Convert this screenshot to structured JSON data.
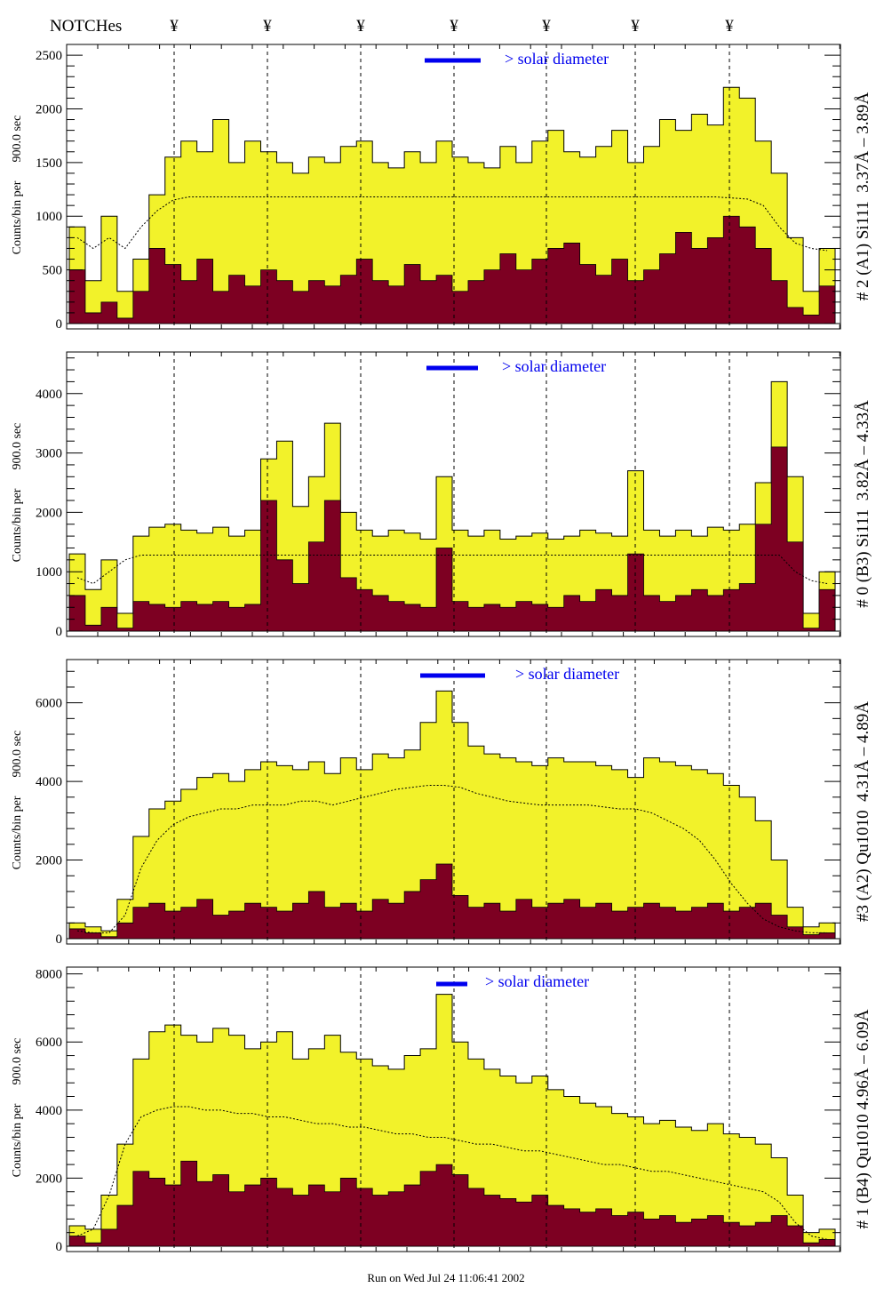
{
  "header": {
    "notches_label": "NOTCHes",
    "notch_symbol": "¥",
    "notch_count": 7
  },
  "footer": "Run on Wed Jul 24 11:06:41 2002",
  "colors": {
    "total": "#f2f22a",
    "filtered": "#7d0022",
    "legend": "#0000ee",
    "axis": "#000000"
  },
  "chart_data": [
    {
      "type": "bar",
      "title": "# 2 (A1) Si111  3.37Å – 3.89Å",
      "ylabel": "Counts/bin per      900.0 sec",
      "legend": "> solar diameter",
      "ylim": [
        0,
        2600
      ],
      "yticks": [
        0,
        500,
        1000,
        1500,
        2000,
        2500
      ],
      "series": [
        {
          "name": "total",
          "values": [
            900,
            400,
            1000,
            300,
            600,
            1200,
            1550,
            1700,
            1600,
            1900,
            1500,
            1700,
            1600,
            1500,
            1400,
            1550,
            1500,
            1650,
            1700,
            1500,
            1450,
            1600,
            1500,
            1700,
            1550,
            1500,
            1450,
            1650,
            1500,
            1700,
            1800,
            1600,
            1550,
            1650,
            1800,
            1500,
            1650,
            1900,
            1800,
            1950,
            1850,
            2200,
            2100,
            1700,
            1400,
            800,
            300,
            700
          ]
        },
        {
          "name": "filtered",
          "values": [
            500,
            100,
            200,
            50,
            300,
            700,
            550,
            400,
            600,
            300,
            450,
            350,
            500,
            400,
            300,
            400,
            350,
            450,
            600,
            400,
            350,
            550,
            400,
            450,
            300,
            400,
            500,
            650,
            500,
            600,
            700,
            750,
            550,
            450,
            600,
            400,
            500,
            650,
            850,
            700,
            800,
            1000,
            900,
            700,
            400,
            150,
            80,
            350
          ]
        },
        {
          "name": "mean",
          "values": [
            800,
            700,
            800,
            700,
            900,
            1050,
            1150,
            1180,
            1180,
            1180,
            1180,
            1180,
            1180,
            1180,
            1180,
            1180,
            1180,
            1180,
            1180,
            1180,
            1180,
            1180,
            1180,
            1180,
            1180,
            1180,
            1180,
            1180,
            1180,
            1180,
            1180,
            1180,
            1180,
            1180,
            1180,
            1180,
            1180,
            1180,
            1180,
            1180,
            1180,
            1170,
            1160,
            1100,
            900,
            750,
            700,
            680
          ]
        }
      ]
    },
    {
      "type": "bar",
      "title": "# 0 (B3) Si111  3.82Å – 4.33Å",
      "ylabel": "Counts/bin per      900.0 sec",
      "legend": "> solar diameter",
      "ylim": [
        0,
        4700
      ],
      "yticks": [
        0,
        1000,
        2000,
        3000,
        4000
      ],
      "series": [
        {
          "name": "total",
          "values": [
            1300,
            700,
            1200,
            300,
            1600,
            1750,
            1800,
            1700,
            1650,
            1750,
            1600,
            1700,
            2900,
            3200,
            2100,
            2600,
            3500,
            2000,
            1700,
            1600,
            1700,
            1650,
            1550,
            2600,
            1700,
            1600,
            1700,
            1550,
            1600,
            1650,
            1550,
            1600,
            1700,
            1650,
            1600,
            2700,
            1700,
            1600,
            1700,
            1600,
            1750,
            1700,
            1800,
            2500,
            4200,
            2600,
            300,
            1000
          ]
        },
        {
          "name": "filtered",
          "values": [
            600,
            100,
            400,
            50,
            500,
            450,
            400,
            500,
            450,
            500,
            400,
            450,
            2200,
            1200,
            800,
            1500,
            2200,
            900,
            700,
            600,
            500,
            450,
            400,
            1400,
            500,
            400,
            450,
            400,
            500,
            450,
            400,
            600,
            500,
            700,
            600,
            1300,
            600,
            500,
            600,
            700,
            600,
            700,
            800,
            1800,
            3100,
            1500,
            50,
            700
          ]
        },
        {
          "name": "mean",
          "values": [
            900,
            800,
            1000,
            1200,
            1280,
            1280,
            1280,
            1280,
            1280,
            1280,
            1280,
            1280,
            1280,
            1280,
            1280,
            1280,
            1280,
            1280,
            1280,
            1280,
            1280,
            1280,
            1280,
            1280,
            1280,
            1280,
            1280,
            1280,
            1280,
            1280,
            1280,
            1280,
            1280,
            1280,
            1280,
            1280,
            1280,
            1280,
            1280,
            1280,
            1280,
            1280,
            1280,
            1280,
            1280,
            1000,
            850,
            800
          ]
        }
      ]
    },
    {
      "type": "bar",
      "title": "#3 (A2) Qu1010  4.31Å – 4.89Å",
      "ylabel": "Counts/bin per      900.0 sec",
      "legend": "> solar diameter",
      "ylim": [
        0,
        7100
      ],
      "yticks": [
        0,
        2000,
        4000,
        6000
      ],
      "series": [
        {
          "name": "total",
          "values": [
            400,
            300,
            200,
            1000,
            2600,
            3300,
            3500,
            3800,
            4100,
            4200,
            4000,
            4300,
            4500,
            4400,
            4300,
            4500,
            4200,
            4600,
            4300,
            4700,
            4600,
            4800,
            5500,
            6300,
            5500,
            4900,
            4700,
            4600,
            4500,
            4400,
            4600,
            4500,
            4500,
            4400,
            4300,
            4100,
            4600,
            4500,
            4400,
            4300,
            4200,
            3900,
            3600,
            3000,
            2000,
            800,
            300,
            400
          ]
        },
        {
          "name": "filtered",
          "values": [
            250,
            150,
            50,
            400,
            800,
            900,
            700,
            800,
            1000,
            600,
            700,
            900,
            800,
            700,
            900,
            1200,
            800,
            900,
            700,
            1000,
            900,
            1200,
            1500,
            1900,
            1100,
            800,
            900,
            700,
            1000,
            800,
            900,
            1000,
            800,
            900,
            700,
            800,
            900,
            800,
            700,
            800,
            900,
            700,
            800,
            900,
            600,
            300,
            100,
            150
          ]
        },
        {
          "name": "mean",
          "values": [
            200,
            150,
            150,
            600,
            1800,
            2500,
            2900,
            3100,
            3200,
            3300,
            3300,
            3400,
            3400,
            3400,
            3500,
            3500,
            3400,
            3500,
            3600,
            3700,
            3800,
            3850,
            3900,
            3900,
            3850,
            3700,
            3600,
            3500,
            3450,
            3400,
            3400,
            3400,
            3400,
            3350,
            3300,
            3300,
            3200,
            3000,
            2800,
            2500,
            2000,
            1400,
            900,
            500,
            300,
            200,
            150,
            150
          ]
        }
      ]
    },
    {
      "type": "bar",
      "title": "# 1 (B4) Qu1010 4.96Å – 6.09Å",
      "ylabel": "Counts/bin per      900.0 sec",
      "legend": "> solar diameter",
      "ylim": [
        0,
        8200
      ],
      "yticks": [
        0,
        2000,
        4000,
        6000,
        8000
      ],
      "series": [
        {
          "name": "total",
          "values": [
            600,
            500,
            1500,
            3000,
            5500,
            6300,
            6500,
            6200,
            6000,
            6400,
            6200,
            5800,
            6000,
            6300,
            5500,
            5800,
            6200,
            5700,
            5500,
            5300,
            5200,
            5600,
            5800,
            7400,
            6000,
            5500,
            5200,
            5000,
            4800,
            5000,
            4600,
            4400,
            4200,
            4100,
            3900,
            3800,
            3600,
            3700,
            3500,
            3400,
            3600,
            3300,
            3200,
            3000,
            2600,
            1500,
            400,
            500
          ]
        },
        {
          "name": "filtered",
          "values": [
            300,
            100,
            500,
            1200,
            2200,
            2000,
            1800,
            2500,
            1900,
            2100,
            1600,
            1800,
            2000,
            1700,
            1500,
            1800,
            1600,
            2000,
            1700,
            1500,
            1600,
            1800,
            2200,
            2400,
            2100,
            1700,
            1500,
            1400,
            1300,
            1500,
            1200,
            1100,
            1000,
            1100,
            900,
            1000,
            800,
            900,
            700,
            800,
            900,
            700,
            600,
            700,
            900,
            600,
            100,
            200
          ]
        },
        {
          "name": "mean",
          "values": [
            300,
            500,
            1500,
            3000,
            3800,
            4000,
            4100,
            4100,
            4000,
            4000,
            3900,
            3900,
            3800,
            3800,
            3700,
            3600,
            3600,
            3500,
            3500,
            3400,
            3300,
            3300,
            3200,
            3200,
            3100,
            3000,
            3000,
            2900,
            2800,
            2800,
            2700,
            2600,
            2500,
            2400,
            2400,
            2300,
            2200,
            2200,
            2100,
            2000,
            1900,
            1800,
            1700,
            1600,
            1300,
            700,
            300,
            200
          ]
        }
      ]
    }
  ]
}
